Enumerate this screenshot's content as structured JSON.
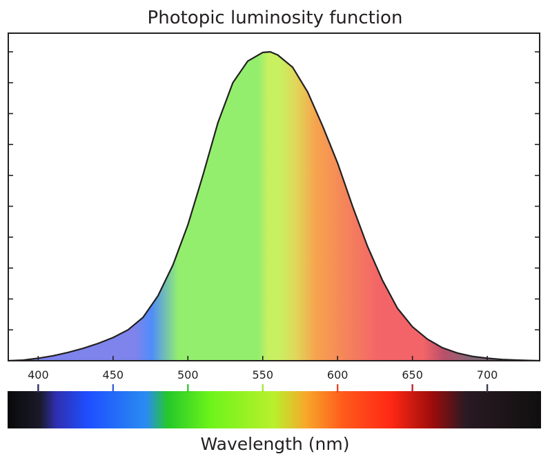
{
  "chart_data": {
    "type": "area",
    "title": "Photopic luminosity function",
    "xlabel": "Wavelength (nm)",
    "ylabel": "",
    "xlim": [
      380,
      735
    ],
    "ylim": [
      0,
      1.0
    ],
    "x_ticks": [
      400,
      450,
      500,
      550,
      600,
      650,
      700
    ],
    "y_tick_count": 11,
    "grid": false,
    "series": [
      {
        "x": [
          380,
          390,
          400,
          410,
          420,
          430,
          440,
          450,
          460,
          470,
          480,
          490,
          500,
          510,
          520,
          530,
          540,
          550,
          555,
          560,
          570,
          580,
          590,
          600,
          610,
          620,
          630,
          640,
          650,
          660,
          670,
          680,
          690,
          700,
          710,
          720,
          735
        ],
        "values": [
          0.0,
          0.002,
          0.008,
          0.016,
          0.027,
          0.04,
          0.056,
          0.075,
          0.1,
          0.14,
          0.21,
          0.31,
          0.44,
          0.6,
          0.77,
          0.9,
          0.97,
          0.998,
          1.0,
          0.99,
          0.95,
          0.87,
          0.76,
          0.64,
          0.5,
          0.37,
          0.26,
          0.17,
          0.11,
          0.07,
          0.042,
          0.025,
          0.014,
          0.008,
          0.004,
          0.002,
          0.0
        ]
      }
    ],
    "spectrum_colors": {
      "violet": "#7e84ec",
      "blue": "#4f8dfa",
      "green": "#93ee6e",
      "yellow_green": "#c8f060",
      "orange": "#f7a24e",
      "red": "#f36468",
      "dark_red": "#b9506a",
      "fade": "#7d6a78"
    },
    "tick_colors": [
      "#2f2f6a",
      "#3a5de0",
      "#31c831",
      "#a7e636",
      "#e84524",
      "#c0242c",
      "#3a3a50"
    ],
    "bar_colors": [
      "#0a0a0a",
      "#1a1a2a",
      "#2f2fb0",
      "#1e4fff",
      "#2a8cf0",
      "#25c82a",
      "#6cf41a",
      "#b9f02c",
      "#f7a82a",
      "#ff5a1c",
      "#ff2814",
      "#9a0c0c",
      "#2a1a22",
      "#101010"
    ]
  }
}
